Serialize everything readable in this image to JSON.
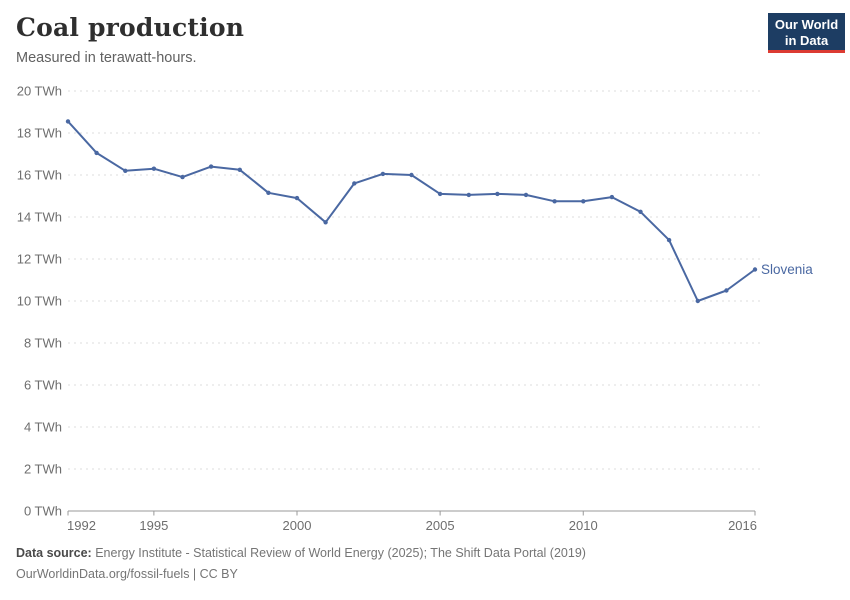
{
  "header": {
    "title": "Coal production",
    "subtitle": "Measured in terawatt-hours."
  },
  "logo": {
    "line1": "Our World",
    "line2": "in Data",
    "bg_color": "#1d3d63",
    "accent_color": "#dc3b32"
  },
  "chart_data": {
    "type": "line",
    "title": "Coal production",
    "subtitle": "Measured in terawatt-hours.",
    "unit": "TWh",
    "x": [
      1992,
      1993,
      1994,
      1995,
      1996,
      1997,
      1998,
      1999,
      2000,
      2001,
      2002,
      2003,
      2004,
      2005,
      2006,
      2007,
      2008,
      2009,
      2010,
      2011,
      2012,
      2013,
      2014,
      2015,
      2016
    ],
    "series": [
      {
        "name": "Slovenia",
        "color": "#4a68a2",
        "values": [
          18.55,
          17.05,
          16.2,
          16.3,
          15.9,
          16.4,
          16.25,
          15.15,
          14.9,
          13.75,
          15.6,
          16.05,
          16.0,
          15.1,
          15.05,
          15.1,
          15.05,
          14.75,
          14.75,
          14.95,
          14.25,
          12.9,
          10.0,
          10.5,
          11.5
        ]
      }
    ],
    "ylim": [
      0,
      20
    ],
    "y_ticks": [
      0,
      2,
      4,
      6,
      8,
      10,
      12,
      14,
      16,
      18,
      20
    ],
    "y_tick_format": "{v} TWh",
    "x_ticks": [
      1992,
      1995,
      2000,
      2005,
      2010,
      2016
    ],
    "grid": true,
    "grid_color": "#dedede",
    "axis_color": "#999999",
    "legend_position": "end-of-line"
  },
  "footer": {
    "source_label": "Data source:",
    "source_text": " Energy Institute - Statistical Review of World Energy (2025); The Shift Data Portal (2019)",
    "note": "OurWorldinData.org/fossil-fuels | CC BY"
  }
}
